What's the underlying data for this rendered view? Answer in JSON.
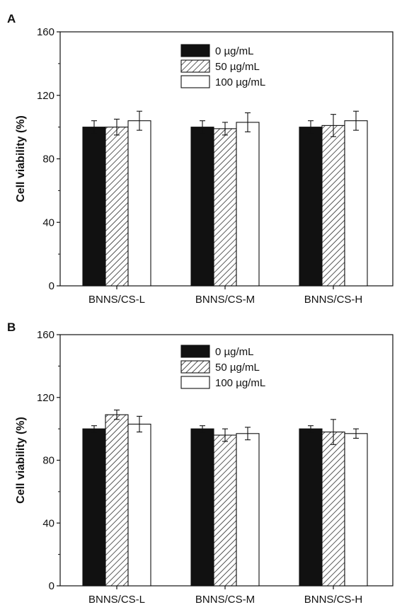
{
  "chart_data": [
    {
      "type": "bar",
      "panel_label": "A",
      "ylabel": "Cell viability (%)",
      "ylim": [
        0,
        160
      ],
      "yticks": [
        "0",
        "40",
        "80",
        "120",
        "160"
      ],
      "categories": [
        "BNNS/CS-L",
        "BNNS/CS-M",
        "BNNS/CS-H"
      ],
      "legend_position": "top-center",
      "series": [
        {
          "name": "0 µg/mL",
          "fill": "solid-black",
          "values": [
            100,
            100,
            100
          ],
          "errors": [
            4,
            4,
            4
          ]
        },
        {
          "name": "50 µg/mL",
          "fill": "hatched",
          "values": [
            100,
            99,
            101
          ],
          "errors": [
            5,
            4,
            7
          ]
        },
        {
          "name": "100 µg/mL",
          "fill": "white",
          "values": [
            104,
            103,
            104
          ],
          "errors": [
            6,
            6,
            6
          ]
        }
      ]
    },
    {
      "type": "bar",
      "panel_label": "B",
      "ylabel": "Cell viability (%)",
      "ylim": [
        0,
        160
      ],
      "yticks": [
        "0",
        "40",
        "80",
        "120",
        "160"
      ],
      "categories": [
        "BNNS/CS-L",
        "BNNS/CS-M",
        "BNNS/CS-H"
      ],
      "legend_position": "top-center",
      "series": [
        {
          "name": "0 µg/mL",
          "fill": "solid-black",
          "values": [
            100,
            100,
            100
          ],
          "errors": [
            2,
            2,
            2
          ]
        },
        {
          "name": "50 µg/mL",
          "fill": "hatched",
          "values": [
            109,
            96,
            98
          ],
          "errors": [
            3,
            4,
            8
          ]
        },
        {
          "name": "100 µg/mL",
          "fill": "white",
          "values": [
            103,
            97,
            97
          ],
          "errors": [
            5,
            4,
            3
          ]
        }
      ]
    }
  ]
}
